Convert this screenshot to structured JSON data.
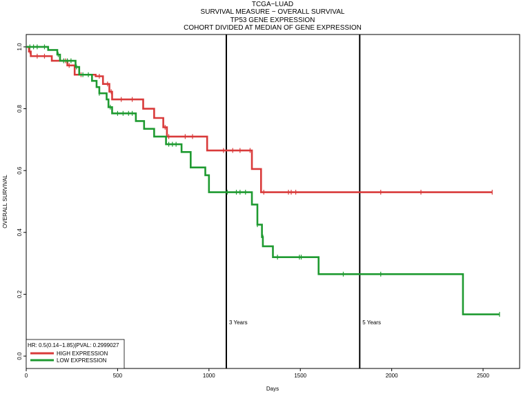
{
  "chart_data": {
    "type": "line",
    "title": [
      "TCGA−LUAD",
      "SURVIVAL MEASURE −  OVERALL SURVIVAL",
      "TP53  GENE EXPRESSION",
      "COHORT DIVIDED AT MEDIAN OF GENE EXPRESSION"
    ],
    "xlabel": "Days",
    "ylabel": "OVERALL SURVIVAL",
    "xlim": [
      0,
      2700
    ],
    "ylim": [
      -0.04,
      1.04
    ],
    "x_ticks": [
      0,
      500,
      1000,
      1500,
      2000,
      2500
    ],
    "y_ticks": [
      0.0,
      0.2,
      0.4,
      0.6,
      0.8,
      1.0
    ],
    "x_tick_labels": [
      "0",
      "500",
      "1000",
      "1500",
      "2000",
      "2500"
    ],
    "y_tick_labels": [
      "0.0",
      "0.2",
      "0.4",
      "0.6",
      "0.8",
      "1.0"
    ],
    "grid": false,
    "legend": {
      "placement": "bottom-left",
      "stat_text": "HR: 0.5(0.14−1.85)|PVAL: 0.2999027"
    },
    "reference_lines": [
      {
        "x": 1095,
        "label": "3 Years"
      },
      {
        "x": 1825,
        "label": "5 Years"
      }
    ],
    "series": [
      {
        "name": "HIGH EXPRESSION",
        "color": "#d93a3a",
        "steps": [
          [
            0,
            1.0
          ],
          [
            15,
            0.985
          ],
          [
            25,
            0.97
          ],
          [
            140,
            0.955
          ],
          [
            225,
            0.94
          ],
          [
            265,
            0.91
          ],
          [
            380,
            0.905
          ],
          [
            420,
            0.88
          ],
          [
            455,
            0.855
          ],
          [
            470,
            0.83
          ],
          [
            640,
            0.8
          ],
          [
            700,
            0.77
          ],
          [
            750,
            0.74
          ],
          [
            770,
            0.71
          ],
          [
            990,
            0.665
          ],
          [
            1235,
            0.605
          ],
          [
            1285,
            0.53
          ],
          [
            2550,
            0.53
          ]
        ],
        "censored": [
          [
            20,
            0.985
          ],
          [
            60,
            0.97
          ],
          [
            100,
            0.97
          ],
          [
            215,
            0.955
          ],
          [
            235,
            0.94
          ],
          [
            300,
            0.91
          ],
          [
            360,
            0.905
          ],
          [
            400,
            0.905
          ],
          [
            445,
            0.88
          ],
          [
            465,
            0.855
          ],
          [
            520,
            0.83
          ],
          [
            580,
            0.83
          ],
          [
            760,
            0.74
          ],
          [
            780,
            0.71
          ],
          [
            870,
            0.71
          ],
          [
            910,
            0.71
          ],
          [
            1080,
            0.665
          ],
          [
            1130,
            0.665
          ],
          [
            1170,
            0.665
          ],
          [
            1225,
            0.665
          ],
          [
            1300,
            0.53
          ],
          [
            1435,
            0.53
          ],
          [
            1450,
            0.53
          ],
          [
            1475,
            0.53
          ],
          [
            1940,
            0.53
          ],
          [
            2160,
            0.53
          ],
          [
            2550,
            0.53
          ]
        ]
      },
      {
        "name": "LOW EXPRESSION",
        "color": "#1e9a30",
        "steps": [
          [
            0,
            1.0
          ],
          [
            120,
            0.99
          ],
          [
            170,
            0.975
          ],
          [
            185,
            0.955
          ],
          [
            270,
            0.935
          ],
          [
            290,
            0.91
          ],
          [
            360,
            0.89
          ],
          [
            385,
            0.87
          ],
          [
            400,
            0.85
          ],
          [
            440,
            0.83
          ],
          [
            450,
            0.805
          ],
          [
            470,
            0.785
          ],
          [
            600,
            0.76
          ],
          [
            645,
            0.735
          ],
          [
            700,
            0.71
          ],
          [
            765,
            0.685
          ],
          [
            850,
            0.66
          ],
          [
            900,
            0.61
          ],
          [
            980,
            0.585
          ],
          [
            1000,
            0.53
          ],
          [
            1235,
            0.49
          ],
          [
            1265,
            0.425
          ],
          [
            1290,
            0.385
          ],
          [
            1295,
            0.355
          ],
          [
            1350,
            0.32
          ],
          [
            1600,
            0.265
          ],
          [
            2390,
            0.265
          ],
          [
            2390,
            0.135
          ],
          [
            2590,
            0.135
          ]
        ],
        "censored": [
          [
            20,
            1.0
          ],
          [
            40,
            1.0
          ],
          [
            60,
            1.0
          ],
          [
            100,
            1.0
          ],
          [
            175,
            0.975
          ],
          [
            205,
            0.955
          ],
          [
            225,
            0.955
          ],
          [
            245,
            0.955
          ],
          [
            275,
            0.935
          ],
          [
            310,
            0.91
          ],
          [
            340,
            0.91
          ],
          [
            400,
            0.85
          ],
          [
            460,
            0.805
          ],
          [
            500,
            0.785
          ],
          [
            530,
            0.785
          ],
          [
            560,
            0.785
          ],
          [
            580,
            0.785
          ],
          [
            780,
            0.685
          ],
          [
            800,
            0.685
          ],
          [
            820,
            0.685
          ],
          [
            1100,
            0.53
          ],
          [
            1150,
            0.53
          ],
          [
            1170,
            0.53
          ],
          [
            1200,
            0.53
          ],
          [
            1265,
            0.425
          ],
          [
            1295,
            0.385
          ],
          [
            1375,
            0.32
          ],
          [
            1495,
            0.32
          ],
          [
            1505,
            0.32
          ],
          [
            1735,
            0.265
          ],
          [
            1940,
            0.265
          ],
          [
            2590,
            0.135
          ]
        ]
      }
    ]
  }
}
